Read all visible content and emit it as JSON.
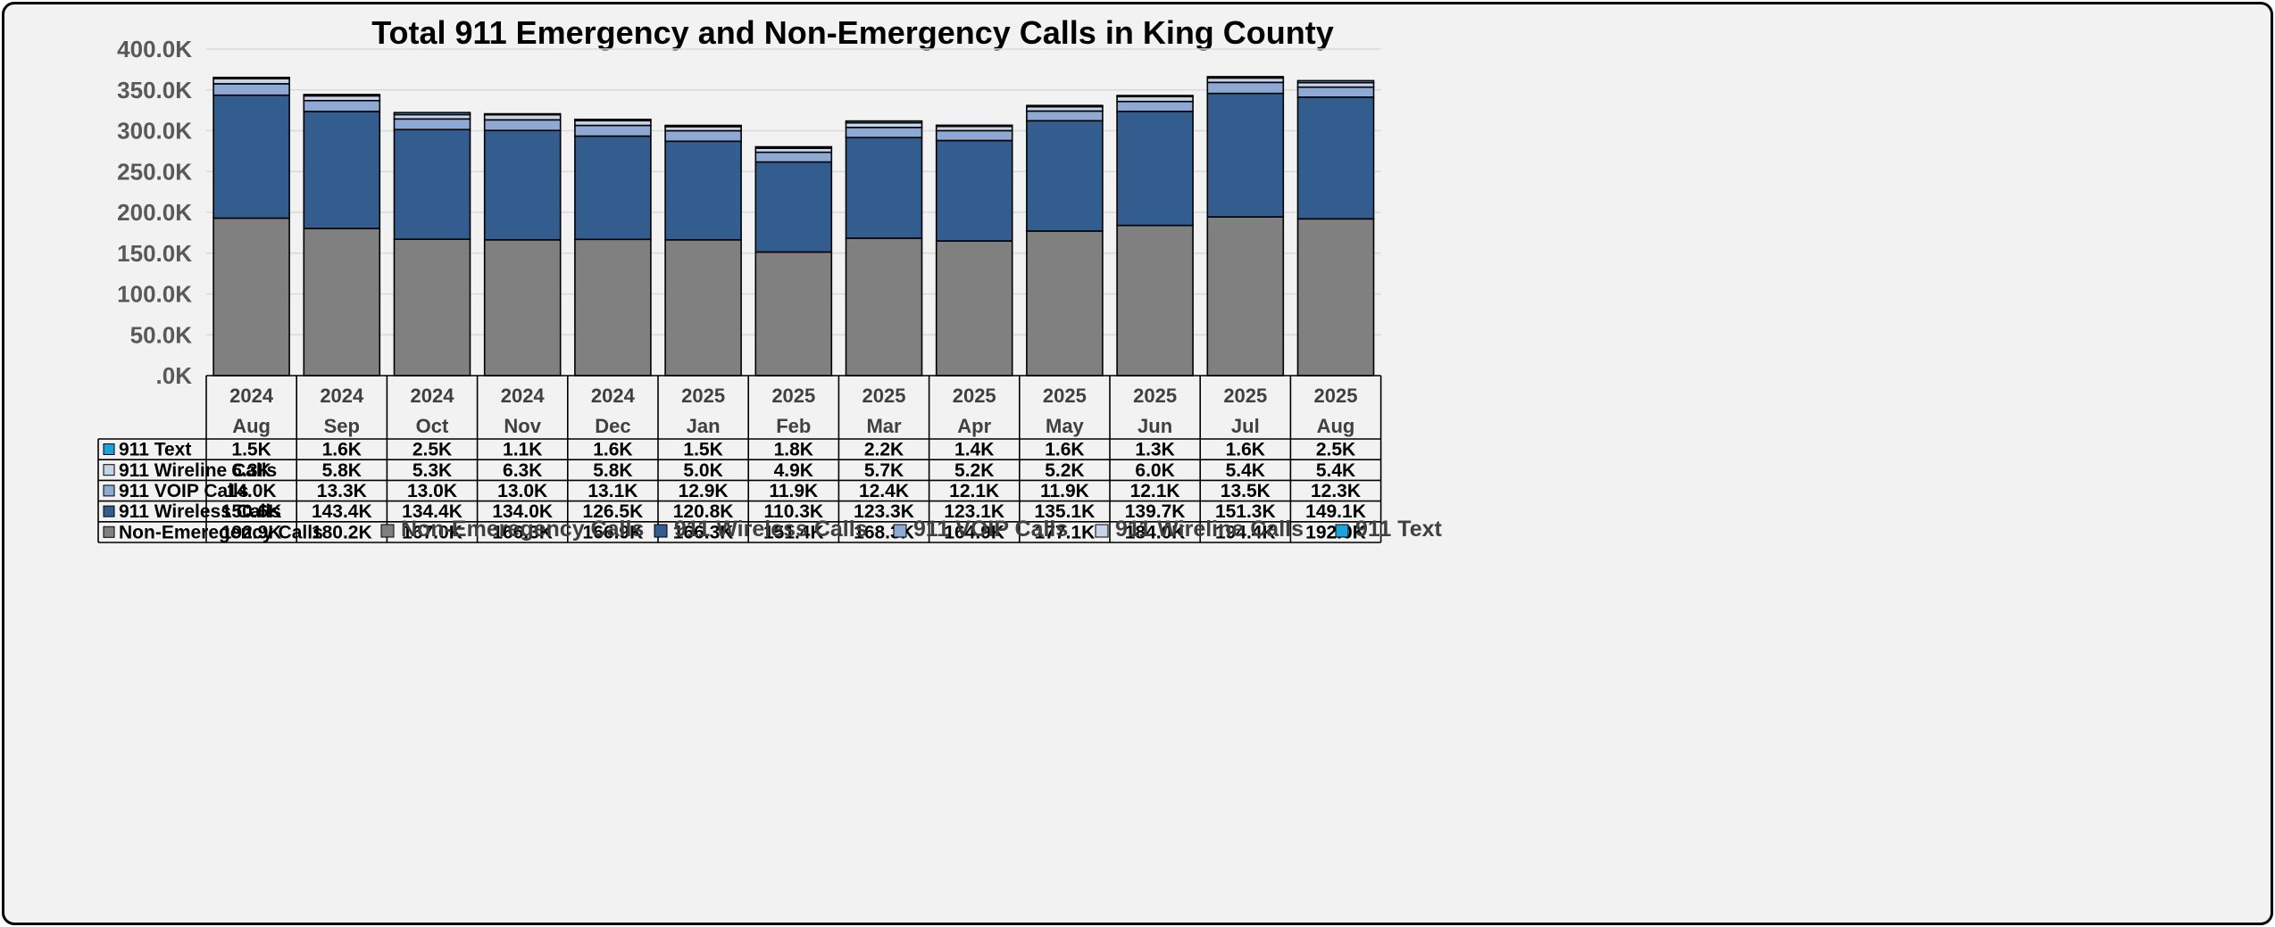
{
  "chart_data": {
    "type": "bar",
    "stacked": true,
    "title": "Total 911 Emergency and Non-Emergency Calls in King County",
    "ylim": [
      0,
      400
    ],
    "y_unit": "K",
    "y_ticks": [
      ".0K",
      "50.0K",
      "100.0K",
      "150.0K",
      "200.0K",
      "250.0K",
      "300.0K",
      "350.0K",
      "400.0K"
    ],
    "categories": [
      {
        "year": "2024",
        "month": "Aug"
      },
      {
        "year": "2024",
        "month": "Sep"
      },
      {
        "year": "2024",
        "month": "Oct"
      },
      {
        "year": "2024",
        "month": "Nov"
      },
      {
        "year": "2024",
        "month": "Dec"
      },
      {
        "year": "2025",
        "month": "Jan"
      },
      {
        "year": "2025",
        "month": "Feb"
      },
      {
        "year": "2025",
        "month": "Mar"
      },
      {
        "year": "2025",
        "month": "Apr"
      },
      {
        "year": "2025",
        "month": "May"
      },
      {
        "year": "2025",
        "month": "Jun"
      },
      {
        "year": "2025",
        "month": "Jul"
      },
      {
        "year": "2025",
        "month": "Aug"
      }
    ],
    "series": [
      {
        "name": "Non-Emeregency Calls",
        "color": "#808080",
        "values": [
          192.9,
          180.2,
          167.0,
          166.3,
          166.9,
          166.3,
          151.4,
          168.3,
          164.9,
          177.1,
          184.0,
          194.4,
          192.0
        ],
        "labels": [
          "192.9K",
          "180.2K",
          "167.0K",
          "166.3K",
          "166.9K",
          "166.3K",
          "151.4K",
          "168.3K",
          "164.9K",
          "177.1K",
          "184.0K",
          "194.4K",
          "192.0K"
        ]
      },
      {
        "name": "911 Wireless Calls",
        "color": "#335c8f",
        "values": [
          150.6,
          143.4,
          134.4,
          134.0,
          126.5,
          120.8,
          110.3,
          123.3,
          123.1,
          135.1,
          139.7,
          151.3,
          149.1
        ],
        "labels": [
          "150.6K",
          "143.4K",
          "134.4K",
          "134.0K",
          "126.5K",
          "120.8K",
          "110.3K",
          "123.3K",
          "123.1K",
          "135.1K",
          "139.7K",
          "151.3K",
          "149.1K"
        ]
      },
      {
        "name": "911 VOIP Calls",
        "color": "#8ea9d4",
        "values": [
          14.0,
          13.3,
          13.0,
          13.0,
          13.1,
          12.9,
          11.9,
          12.4,
          12.1,
          11.9,
          12.1,
          13.5,
          12.3
        ],
        "labels": [
          "14.0K",
          "13.3K",
          "13.0K",
          "13.0K",
          "13.1K",
          "12.9K",
          "11.9K",
          "12.4K",
          "12.1K",
          "11.9K",
          "12.1K",
          "13.5K",
          "12.3K"
        ]
      },
      {
        "name": "911 Wireline Calls",
        "color": "#c6d4ea",
        "values": [
          6.3,
          5.8,
          5.3,
          6.3,
          5.8,
          5.0,
          4.9,
          5.7,
          5.2,
          5.2,
          6.0,
          5.4,
          5.4
        ],
        "labels": [
          "6.3K",
          "5.8K",
          "5.3K",
          "6.3K",
          "5.8K",
          "5.0K",
          "4.9K",
          "5.7K",
          "5.2K",
          "5.2K",
          "6.0K",
          "5.4K",
          "5.4K"
        ]
      },
      {
        "name": "911 Text",
        "color": "#1aa3dc",
        "values": [
          1.5,
          1.6,
          2.5,
          1.1,
          1.6,
          1.5,
          1.8,
          2.2,
          1.4,
          1.6,
          1.3,
          1.6,
          2.5
        ],
        "labels": [
          "1.5K",
          "1.6K",
          "2.5K",
          "1.1K",
          "1.6K",
          "1.5K",
          "1.8K",
          "2.2K",
          "1.4K",
          "1.6K",
          "1.3K",
          "1.6K",
          "2.5K"
        ]
      }
    ],
    "table_row_order": [
      "911 Text",
      "911 Wireline Calls",
      "911 VOIP Calls",
      "911 Wireless Calls",
      "Non-Emeregency Calls"
    ],
    "legend": [
      "Non-Emeregency Calls",
      "911 Wireless Calls",
      "911 VOIP Calls",
      "911 Wireline Calls",
      "911 Text"
    ],
    "legend_position": "bottom",
    "grid": true
  }
}
